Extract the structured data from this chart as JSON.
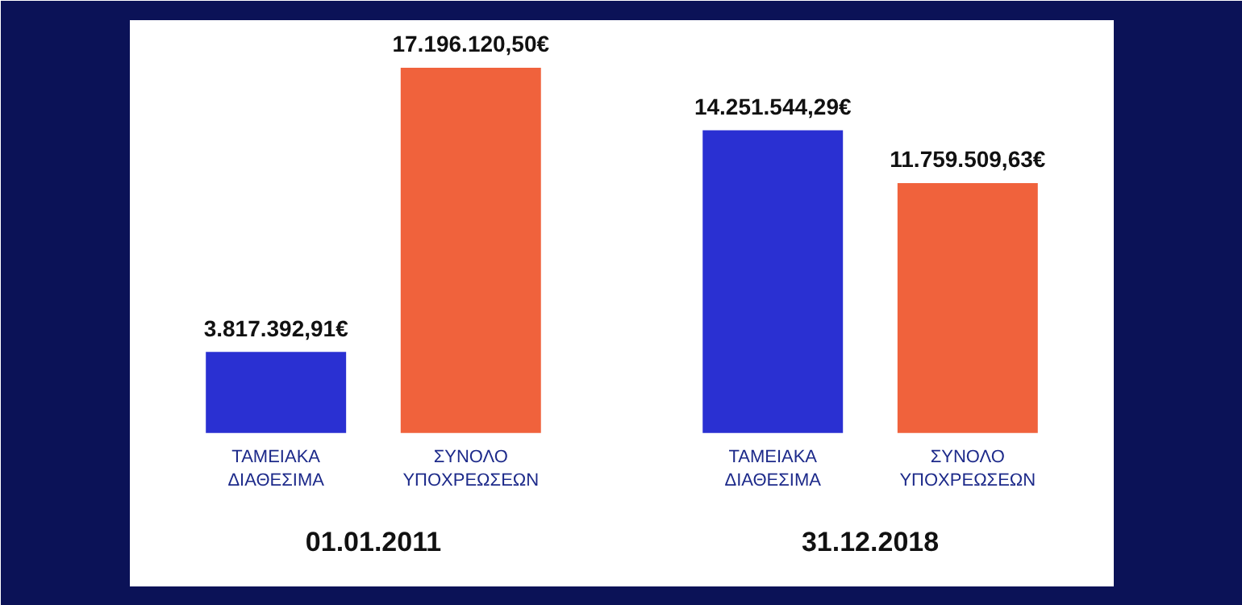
{
  "chart_data": {
    "type": "bar",
    "categories": [
      "ΤΑΜΕΙΑΚΑ\nΔΙΑΘΕΣΙΜΑ",
      "ΣΥΝΟΛΟ\nΥΠΟΧΡΕΩΣΕΩΝ",
      "ΤΑΜΕΙΑΚΑ\nΔΙΑΘΕΣΙΜΑ",
      "ΣΥΝΟΛΟ\nΥΠΟΧΡΕΩΣΕΩΝ"
    ],
    "values": [
      3817392.91,
      17196120.5,
      14251544.29,
      11759509.63
    ],
    "colors": [
      "#2a30d2",
      "#f0623c",
      "#2a30d2",
      "#f0623c"
    ],
    "value_labels": [
      "3.817.392,91€",
      "17.196.120,50€",
      "14.251.544,29€",
      "11.759.509,63€"
    ],
    "annotations": [
      "01.01.2011",
      "31.12.2018"
    ]
  }
}
